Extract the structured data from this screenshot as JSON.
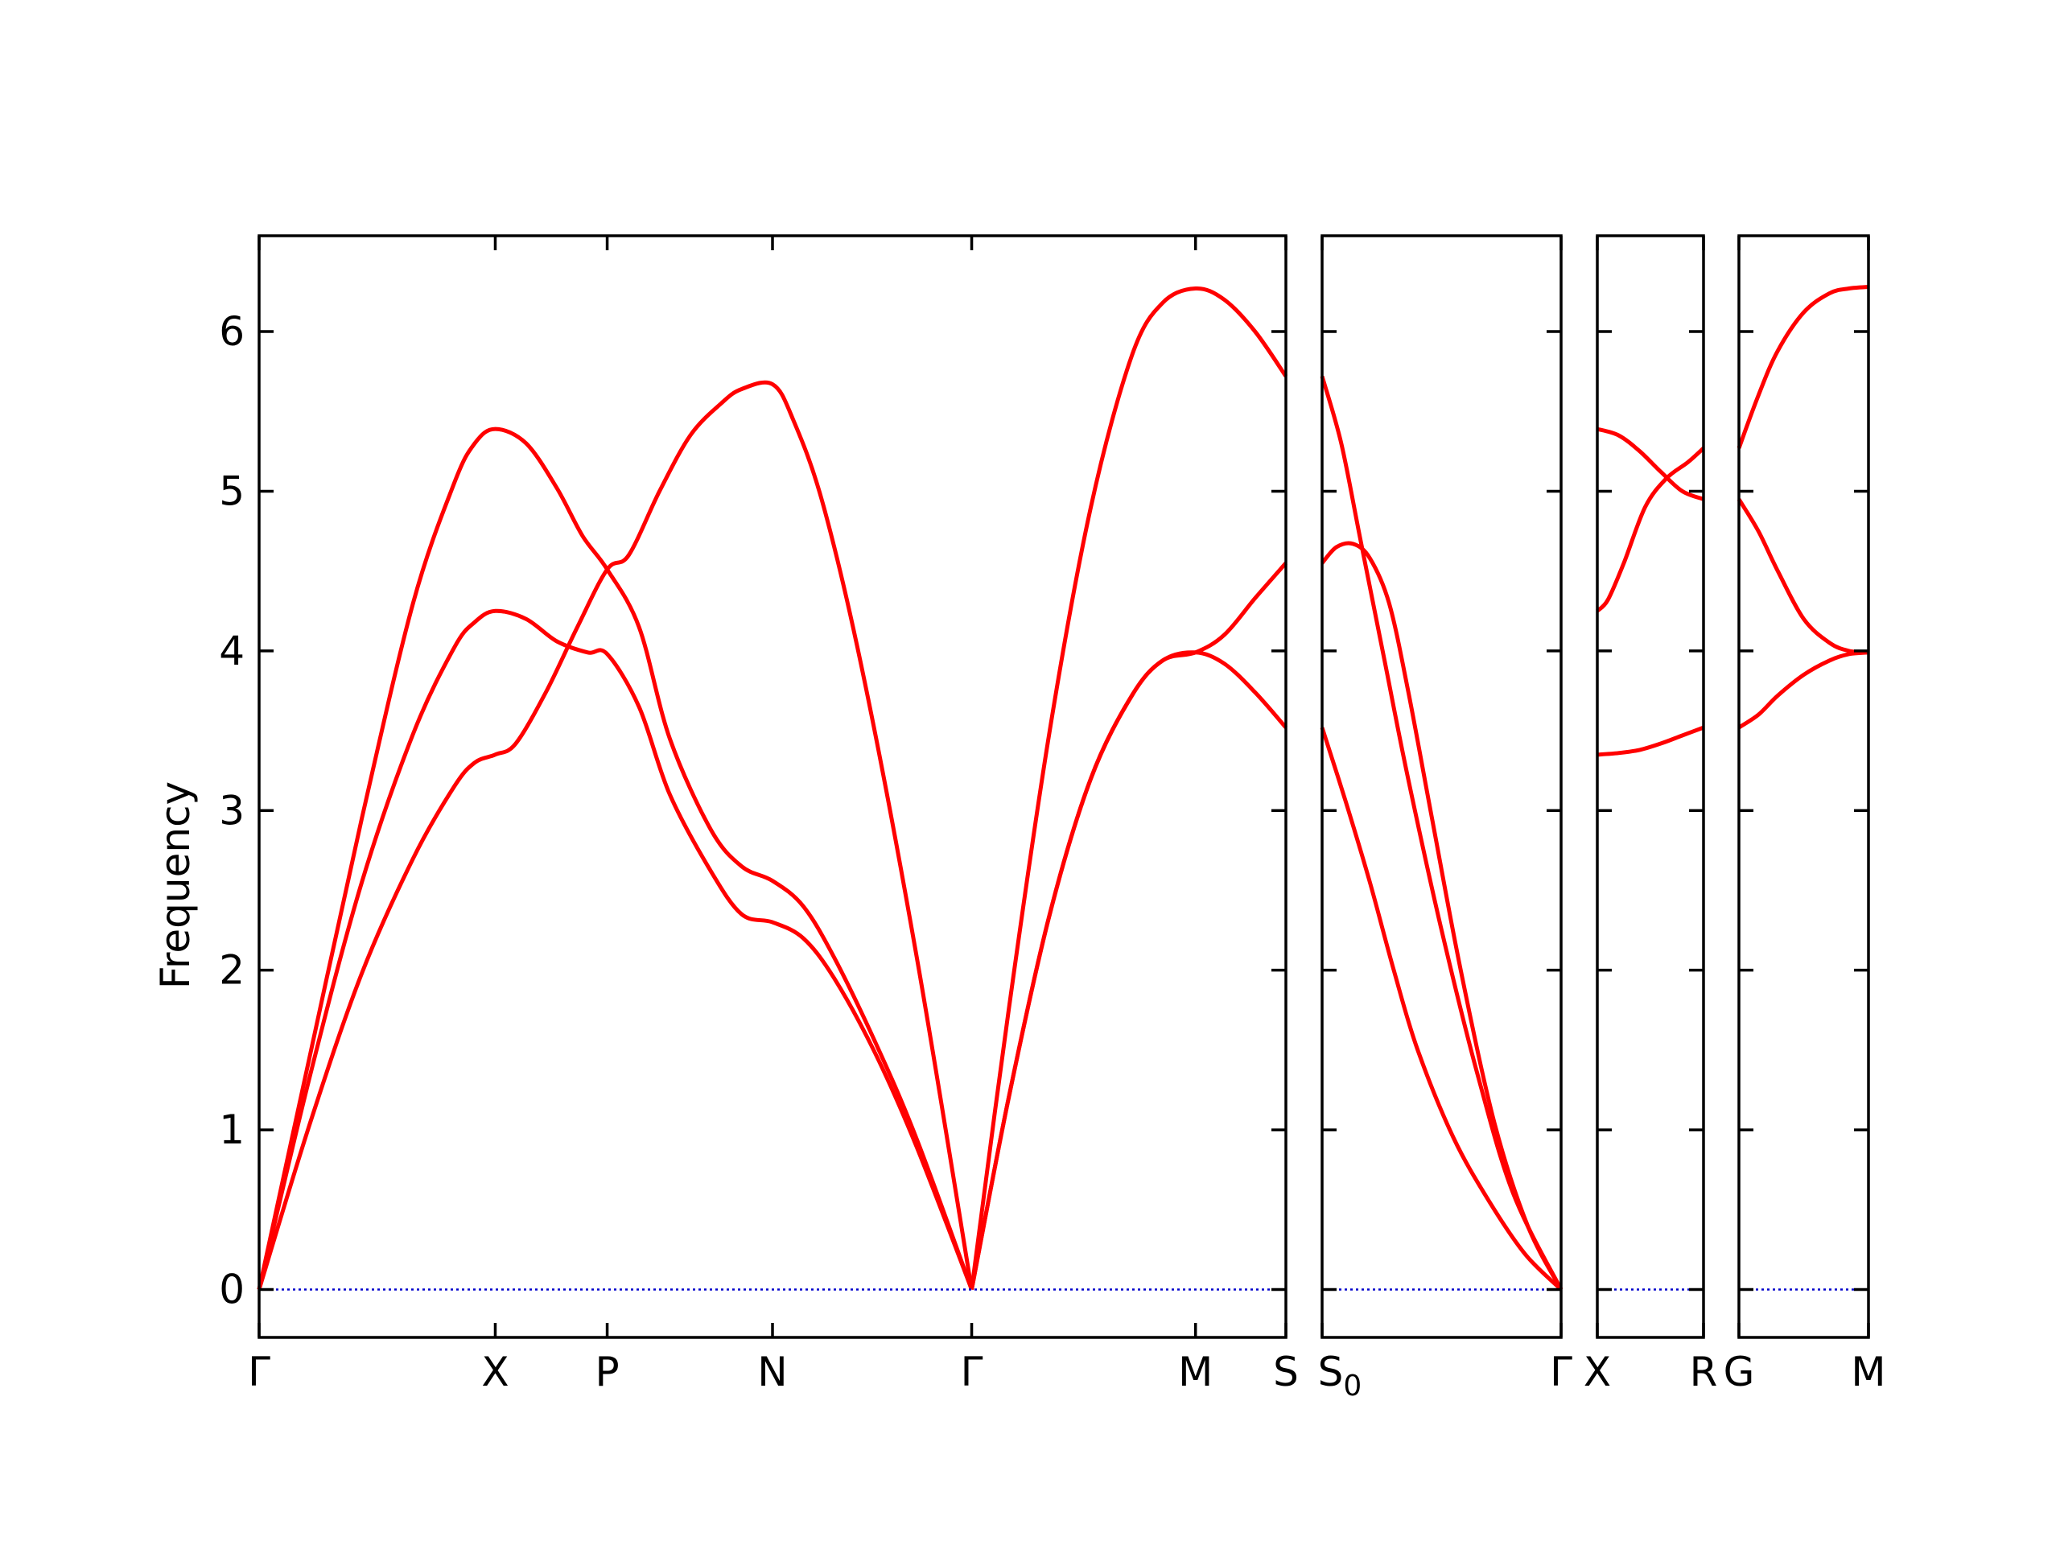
{
  "chart_data": {
    "type": "line",
    "title": "",
    "ylabel": "Frequency",
    "ylim": [
      -0.3,
      6.6
    ],
    "yticks": [
      0,
      1,
      2,
      3,
      4,
      5,
      6
    ],
    "grid": false,
    "legend": "none",
    "colors": {
      "band": "#ff0000",
      "zero_line": "#0000cc",
      "axes": "#000000"
    },
    "panels": [
      {
        "name": "Γ-X-P-N-Γ-M-S",
        "xlim": [
          0,
          1
        ],
        "xticks": [
          {
            "x": 0.0,
            "label": "Γ"
          },
          {
            "x": 0.23,
            "label": "X"
          },
          {
            "x": 0.339,
            "label": "P"
          },
          {
            "x": 0.5,
            "label": "N"
          },
          {
            "x": 0.694,
            "label": "Γ"
          },
          {
            "x": 0.912,
            "label": "M"
          },
          {
            "x": 1.0,
            "label": "S"
          }
        ],
        "series": [
          {
            "values": [
              [
                0,
                0
              ],
              [
                0.05,
                1.48
              ],
              [
                0.1,
                2.95
              ],
              [
                0.15,
                4.3
              ],
              [
                0.19,
                5.05
              ],
              [
                0.21,
                5.3
              ],
              [
                0.23,
                5.39
              ],
              [
                0.26,
                5.3
              ],
              [
                0.29,
                5.02
              ],
              [
                0.315,
                4.72
              ],
              [
                0.339,
                4.51
              ],
              [
                0.37,
                4.15
              ],
              [
                0.4,
                3.45
              ],
              [
                0.44,
                2.88
              ],
              [
                0.47,
                2.65
              ],
              [
                0.5,
                2.56
              ],
              [
                0.53,
                2.4
              ],
              [
                0.56,
                2.08
              ],
              [
                0.6,
                1.55
              ],
              [
                0.64,
                0.95
              ],
              [
                0.694,
                0
              ]
            ]
          },
          {
            "values": [
              [
                0,
                0
              ],
              [
                0.05,
                1.35
              ],
              [
                0.1,
                2.55
              ],
              [
                0.15,
                3.48
              ],
              [
                0.19,
                4.02
              ],
              [
                0.21,
                4.18
              ],
              [
                0.23,
                4.25
              ],
              [
                0.26,
                4.2
              ],
              [
                0.29,
                4.06
              ],
              [
                0.32,
                3.99
              ],
              [
                0.339,
                3.98
              ],
              [
                0.37,
                3.65
              ],
              [
                0.4,
                3.1
              ],
              [
                0.44,
                2.62
              ],
              [
                0.47,
                2.35
              ],
              [
                0.5,
                2.3
              ],
              [
                0.53,
                2.2
              ],
              [
                0.56,
                1.95
              ],
              [
                0.6,
                1.48
              ],
              [
                0.64,
                0.9
              ],
              [
                0.694,
                0
              ]
            ]
          },
          {
            "values": [
              [
                0,
                0
              ],
              [
                0.05,
                1.05
              ],
              [
                0.1,
                1.98
              ],
              [
                0.15,
                2.7
              ],
              [
                0.19,
                3.15
              ],
              [
                0.21,
                3.3
              ],
              [
                0.23,
                3.35
              ],
              [
                0.25,
                3.42
              ],
              [
                0.28,
                3.75
              ],
              [
                0.31,
                4.15
              ],
              [
                0.339,
                4.51
              ],
              [
                0.36,
                4.6
              ],
              [
                0.39,
                5.0
              ],
              [
                0.42,
                5.35
              ],
              [
                0.45,
                5.55
              ],
              [
                0.47,
                5.64
              ],
              [
                0.5,
                5.67
              ],
              [
                0.52,
                5.45
              ],
              [
                0.55,
                4.9
              ],
              [
                0.59,
                3.8
              ],
              [
                0.64,
                2.1
              ],
              [
                0.694,
                0
              ]
            ]
          },
          {
            "values": [
              [
                0.694,
                0
              ],
              [
                0.73,
                1.75
              ],
              [
                0.77,
                3.5
              ],
              [
                0.81,
                4.9
              ],
              [
                0.85,
                5.85
              ],
              [
                0.88,
                6.18
              ],
              [
                0.912,
                6.27
              ],
              [
                0.94,
                6.2
              ],
              [
                0.97,
                6.0
              ],
              [
                1.0,
                5.72
              ]
            ]
          },
          {
            "values": [
              [
                0.694,
                0
              ],
              [
                0.73,
                1.2
              ],
              [
                0.77,
                2.35
              ],
              [
                0.81,
                3.2
              ],
              [
                0.85,
                3.72
              ],
              [
                0.88,
                3.94
              ],
              [
                0.912,
                3.99
              ],
              [
                0.94,
                4.1
              ],
              [
                0.97,
                4.33
              ],
              [
                1.0,
                4.55
              ]
            ]
          },
          {
            "values": [
              [
                0.694,
                0
              ],
              [
                0.73,
                1.2
              ],
              [
                0.77,
                2.35
              ],
              [
                0.81,
                3.2
              ],
              [
                0.85,
                3.72
              ],
              [
                0.88,
                3.94
              ],
              [
                0.912,
                3.99
              ],
              [
                0.94,
                3.92
              ],
              [
                0.97,
                3.74
              ],
              [
                1.0,
                3.52
              ]
            ]
          }
        ]
      },
      {
        "name": "S0-Γ",
        "xlim": [
          0,
          1
        ],
        "xticks": [
          {
            "x": 0.0,
            "label": "S",
            "sub": "0"
          },
          {
            "x": 1.0,
            "label": "Γ"
          }
        ],
        "series": [
          {
            "values": [
              [
                0,
                5.72
              ],
              [
                0.08,
                5.3
              ],
              [
                0.16,
                4.7
              ],
              [
                0.26,
                3.95
              ],
              [
                0.36,
                3.2
              ],
              [
                0.5,
                2.25
              ],
              [
                0.65,
                1.35
              ],
              [
                0.8,
                0.6
              ],
              [
                1.0,
                0
              ]
            ]
          },
          {
            "values": [
              [
                0,
                4.55
              ],
              [
                0.06,
                4.65
              ],
              [
                0.13,
                4.67
              ],
              [
                0.2,
                4.58
              ],
              [
                0.28,
                4.3
              ],
              [
                0.36,
                3.75
              ],
              [
                0.46,
                2.95
              ],
              [
                0.58,
                2.0
              ],
              [
                0.72,
                1.05
              ],
              [
                0.86,
                0.4
              ],
              [
                1.0,
                0
              ]
            ]
          },
          {
            "values": [
              [
                0,
                3.52
              ],
              [
                0.1,
                3.05
              ],
              [
                0.2,
                2.55
              ],
              [
                0.3,
                2.0
              ],
              [
                0.4,
                1.5
              ],
              [
                0.55,
                0.95
              ],
              [
                0.7,
                0.55
              ],
              [
                0.85,
                0.22
              ],
              [
                1.0,
                0
              ]
            ]
          }
        ]
      },
      {
        "name": "X-R",
        "xlim": [
          0,
          1
        ],
        "xticks": [
          {
            "x": 0.0,
            "label": "X"
          },
          {
            "x": 1.0,
            "label": "R"
          }
        ],
        "series": [
          {
            "values": [
              [
                0,
                5.39
              ],
              [
                0.2,
                5.35
              ],
              [
                0.4,
                5.25
              ],
              [
                0.6,
                5.12
              ],
              [
                0.8,
                5.0
              ],
              [
                1.0,
                4.95
              ]
            ]
          },
          {
            "values": [
              [
                0,
                4.25
              ],
              [
                0.1,
                4.32
              ],
              [
                0.25,
                4.55
              ],
              [
                0.45,
                4.9
              ],
              [
                0.65,
                5.08
              ],
              [
                0.85,
                5.18
              ],
              [
                1.0,
                5.27
              ]
            ]
          },
          {
            "values": [
              [
                0,
                3.35
              ],
              [
                0.2,
                3.36
              ],
              [
                0.4,
                3.38
              ],
              [
                0.6,
                3.42
              ],
              [
                0.8,
                3.47
              ],
              [
                1.0,
                3.52
              ]
            ]
          }
        ]
      },
      {
        "name": "G-M",
        "xlim": [
          0,
          1
        ],
        "xticks": [
          {
            "x": 0.0,
            "label": "G"
          },
          {
            "x": 1.0,
            "label": "M"
          }
        ],
        "series": [
          {
            "values": [
              [
                0,
                5.27
              ],
              [
                0.15,
                5.6
              ],
              [
                0.3,
                5.88
              ],
              [
                0.5,
                6.12
              ],
              [
                0.7,
                6.24
              ],
              [
                0.85,
                6.27
              ],
              [
                1.0,
                6.28
              ]
            ]
          },
          {
            "values": [
              [
                0,
                4.95
              ],
              [
                0.15,
                4.75
              ],
              [
                0.3,
                4.5
              ],
              [
                0.5,
                4.2
              ],
              [
                0.7,
                4.05
              ],
              [
                0.85,
                4.0
              ],
              [
                1.0,
                3.99
              ]
            ]
          },
          {
            "values": [
              [
                0,
                3.52
              ],
              [
                0.15,
                3.6
              ],
              [
                0.3,
                3.72
              ],
              [
                0.5,
                3.85
              ],
              [
                0.7,
                3.94
              ],
              [
                0.85,
                3.98
              ],
              [
                1.0,
                3.99
              ]
            ]
          }
        ]
      }
    ]
  }
}
